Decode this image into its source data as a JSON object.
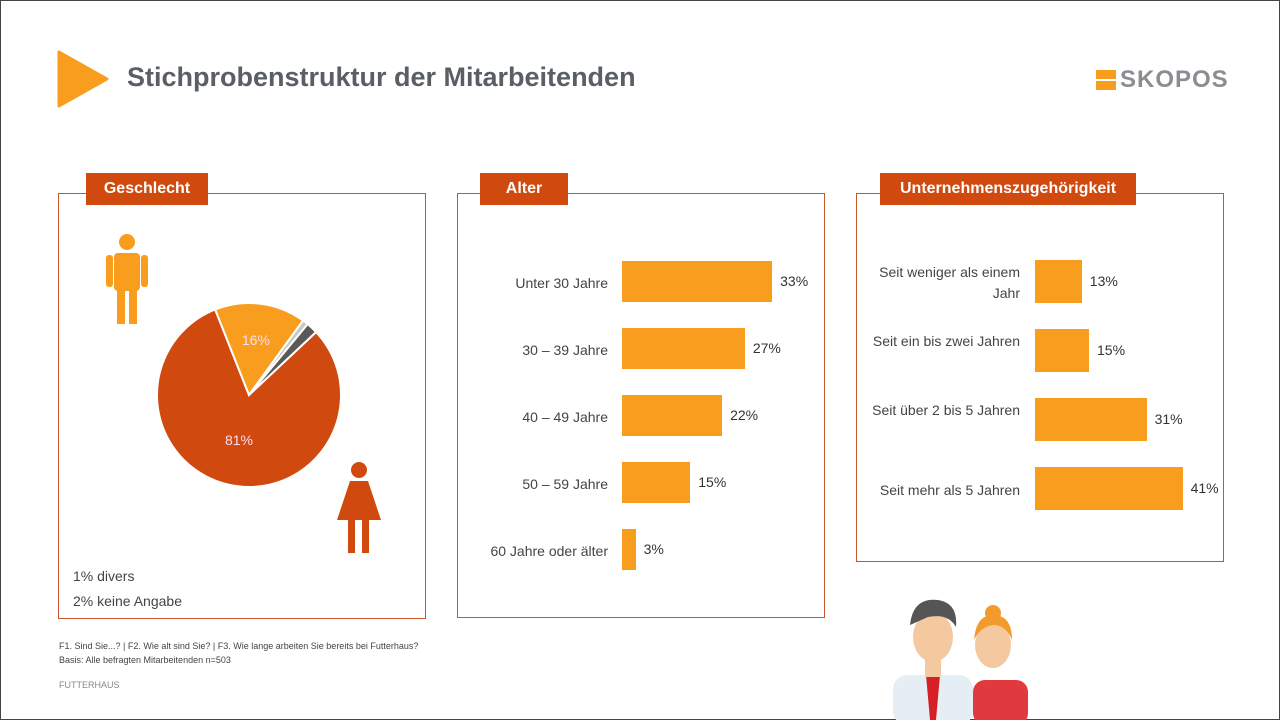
{
  "title": "Stichprobenstruktur der Mitarbeitenden",
  "logo": "SKOPOS",
  "colors": {
    "accent": "#f89d1e",
    "dark": "#d04a0f",
    "divers": "#c8c8c8",
    "keine": "#595959"
  },
  "footer": {
    "line1": "F1. Sind Sie...? | F2. Wie alt sind Sie? | F3. Wie lange arbeiten Sie bereits bei Futterhaus?",
    "line2": "Basis: Alle befragten Mitarbeitenden n=503",
    "client": "FUTTERHAUS"
  },
  "chart_data": [
    {
      "type": "pie",
      "title": "Geschlecht",
      "slices": [
        {
          "name": "weiblich",
          "value": 81,
          "label": "81%",
          "color": "#d04a0f"
        },
        {
          "name": "männlich",
          "value": 16,
          "label": "16%",
          "color": "#f89d1e"
        },
        {
          "name": "divers",
          "value": 1,
          "color": "#c8c8c8"
        },
        {
          "name": "keine Angabe",
          "value": 2,
          "color": "#595959"
        }
      ],
      "notes": [
        "1% divers",
        "2% keine Angabe"
      ]
    },
    {
      "type": "bar",
      "orientation": "horizontal",
      "title": "Alter",
      "categories": [
        "Unter 30 Jahre",
        "30 – 39 Jahre",
        "40 – 49 Jahre",
        "50 – 59 Jahre",
        "60 Jahre oder älter"
      ],
      "values": [
        33,
        27,
        22,
        15,
        3
      ],
      "labels": [
        "33%",
        "27%",
        "22%",
        "15%",
        "3%"
      ]
    },
    {
      "type": "bar",
      "orientation": "horizontal",
      "title": "Unternehmenszugehörigkeit",
      "categories": [
        "Seit weniger als einem Jahr",
        "Seit ein bis zwei Jahren",
        "Seit über 2 bis 5 Jahren",
        "Seit mehr als 5 Jahren"
      ],
      "values": [
        13,
        15,
        31,
        41
      ],
      "labels": [
        "13%",
        "15%",
        "31%",
        "41%"
      ]
    }
  ]
}
